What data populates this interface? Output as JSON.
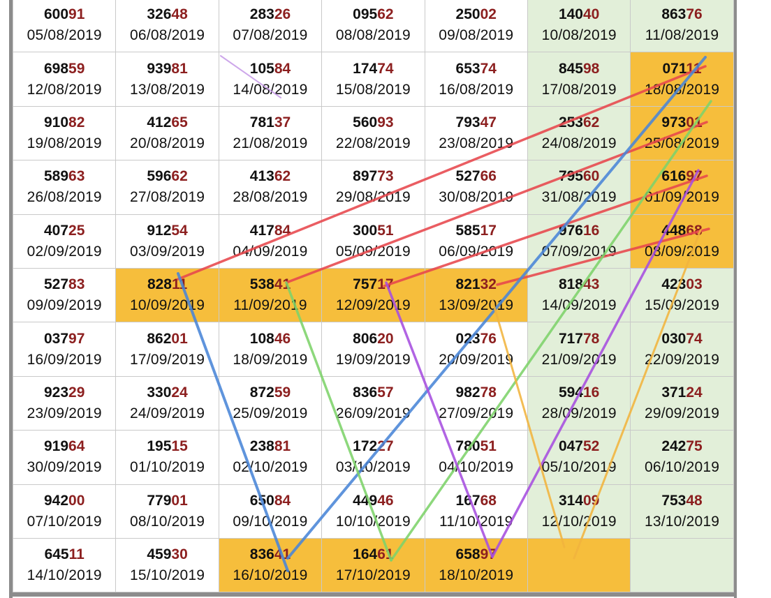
{
  "rows": [
    [
      {
        "head": "600",
        "tail": "91",
        "date": "05/08/2019"
      },
      {
        "head": "326",
        "tail": "48",
        "date": "06/08/2019"
      },
      {
        "head": "283",
        "tail": "26",
        "date": "07/08/2019"
      },
      {
        "head": "095",
        "tail": "62",
        "date": "08/08/2019"
      },
      {
        "head": "250",
        "tail": "02",
        "date": "09/08/2019"
      },
      {
        "head": "140",
        "tail": "40",
        "date": "10/08/2019"
      },
      {
        "head": "863",
        "tail": "76",
        "date": "11/08/2019"
      }
    ],
    [
      {
        "head": "698",
        "tail": "59",
        "date": "12/08/2019"
      },
      {
        "head": "939",
        "tail": "81",
        "date": "13/08/2019"
      },
      {
        "head": "105",
        "tail": "84",
        "date": "14/08/2019"
      },
      {
        "head": "174",
        "tail": "74",
        "date": "15/08/2019"
      },
      {
        "head": "653",
        "tail": "74",
        "date": "16/08/2019"
      },
      {
        "head": "845",
        "tail": "98",
        "date": "17/08/2019"
      },
      {
        "head": "071",
        "tail": "11",
        "date": "18/08/2019",
        "hl": "orange"
      }
    ],
    [
      {
        "head": "910",
        "tail": "82",
        "date": "19/08/2019"
      },
      {
        "head": "412",
        "tail": "65",
        "date": "20/08/2019"
      },
      {
        "head": "781",
        "tail": "37",
        "date": "21/08/2019"
      },
      {
        "head": "560",
        "tail": "93",
        "date": "22/08/2019"
      },
      {
        "head": "793",
        "tail": "47",
        "date": "23/08/2019"
      },
      {
        "head": "253",
        "tail": "62",
        "date": "24/08/2019"
      },
      {
        "head": "973",
        "tail": "01",
        "date": "25/08/2019",
        "hl": "orange"
      }
    ],
    [
      {
        "head": "589",
        "tail": "63",
        "date": "26/08/2019"
      },
      {
        "head": "596",
        "tail": "62",
        "date": "27/08/2019"
      },
      {
        "head": "413",
        "tail": "62",
        "date": "28/08/2019"
      },
      {
        "head": "897",
        "tail": "73",
        "date": "29/08/2019"
      },
      {
        "head": "527",
        "tail": "66",
        "date": "30/08/2019"
      },
      {
        "head": "795",
        "tail": "60",
        "date": "31/08/2019"
      },
      {
        "head": "616",
        "tail": "97",
        "date": "01/09/2019",
        "hl": "orange"
      }
    ],
    [
      {
        "head": "407",
        "tail": "25",
        "date": "02/09/2019"
      },
      {
        "head": "912",
        "tail": "54",
        "date": "03/09/2019"
      },
      {
        "head": "417",
        "tail": "84",
        "date": "04/09/2019"
      },
      {
        "head": "300",
        "tail": "51",
        "date": "05/09/2019"
      },
      {
        "head": "585",
        "tail": "17",
        "date": "06/09/2019"
      },
      {
        "head": "976",
        "tail": "16",
        "date": "07/09/2019"
      },
      {
        "head": "448",
        "tail": "68",
        "date": "08/09/2019",
        "hl": "orange"
      }
    ],
    [
      {
        "head": "527",
        "tail": "83",
        "date": "09/09/2019"
      },
      {
        "head": "828",
        "tail": "11",
        "date": "10/09/2019",
        "hl": "orange"
      },
      {
        "head": "538",
        "tail": "41",
        "date": "11/09/2019",
        "hl": "orange"
      },
      {
        "head": "757",
        "tail": "17",
        "date": "12/09/2019",
        "hl": "orange"
      },
      {
        "head": "821",
        "tail": "32",
        "date": "13/09/2019",
        "hl": "orange"
      },
      {
        "head": "818",
        "tail": "43",
        "date": "14/09/2019"
      },
      {
        "head": "423",
        "tail": "03",
        "date": "15/09/2019"
      }
    ],
    [
      {
        "head": "037",
        "tail": "97",
        "date": "16/09/2019"
      },
      {
        "head": "862",
        "tail": "01",
        "date": "17/09/2019"
      },
      {
        "head": "108",
        "tail": "46",
        "date": "18/09/2019"
      },
      {
        "head": "806",
        "tail": "20",
        "date": "19/09/2019"
      },
      {
        "head": "023",
        "tail": "76",
        "date": "20/09/2019"
      },
      {
        "head": "717",
        "tail": "78",
        "date": "21/09/2019"
      },
      {
        "head": "030",
        "tail": "74",
        "date": "22/09/2019"
      }
    ],
    [
      {
        "head": "923",
        "tail": "29",
        "date": "23/09/2019"
      },
      {
        "head": "330",
        "tail": "24",
        "date": "24/09/2019"
      },
      {
        "head": "872",
        "tail": "59",
        "date": "25/09/2019"
      },
      {
        "head": "836",
        "tail": "57",
        "date": "26/09/2019"
      },
      {
        "head": "982",
        "tail": "78",
        "date": "27/09/2019"
      },
      {
        "head": "594",
        "tail": "16",
        "date": "28/09/2019"
      },
      {
        "head": "371",
        "tail": "24",
        "date": "29/09/2019"
      }
    ],
    [
      {
        "head": "919",
        "tail": "64",
        "date": "30/09/2019"
      },
      {
        "head": "195",
        "tail": "15",
        "date": "01/10/2019"
      },
      {
        "head": "238",
        "tail": "81",
        "date": "02/10/2019"
      },
      {
        "head": "172",
        "tail": "27",
        "date": "03/10/2019"
      },
      {
        "head": "780",
        "tail": "51",
        "date": "04/10/2019"
      },
      {
        "head": "047",
        "tail": "52",
        "date": "05/10/2019"
      },
      {
        "head": "242",
        "tail": "75",
        "date": "06/10/2019"
      }
    ],
    [
      {
        "head": "942",
        "tail": "00",
        "date": "07/10/2019"
      },
      {
        "head": "779",
        "tail": "01",
        "date": "08/10/2019"
      },
      {
        "head": "650",
        "tail": "84",
        "date": "09/10/2019"
      },
      {
        "head": "449",
        "tail": "46",
        "date": "10/10/2019"
      },
      {
        "head": "167",
        "tail": "68",
        "date": "11/10/2019"
      },
      {
        "head": "314",
        "tail": "09",
        "date": "12/10/2019"
      },
      {
        "head": "753",
        "tail": "48",
        "date": "13/10/2019"
      }
    ],
    [
      {
        "head": "645",
        "tail": "11",
        "date": "14/10/2019"
      },
      {
        "head": "459",
        "tail": "30",
        "date": "15/10/2019"
      },
      {
        "head": "836",
        "tail": "41",
        "date": "16/10/2019",
        "hl": "orange"
      },
      {
        "head": "164",
        "tail": "61",
        "date": "17/10/2019",
        "hl": "orange"
      },
      {
        "head": "658",
        "tail": "97",
        "date": "18/10/2019",
        "hl": "orange"
      },
      {
        "head": "",
        "tail": "",
        "date": "",
        "hl": "orange"
      },
      {
        "head": "",
        "tail": "",
        "date": "",
        "hl": "green"
      }
    ]
  ],
  "green_columns": [
    5,
    6
  ],
  "colors": {
    "orange_highlight": "#f6be3c",
    "green_highlight": "#e2efd9",
    "tail_digits": "#8c1f1f",
    "stroke_red": "#e8474d",
    "stroke_blue": "#4a86d8",
    "stroke_green": "#7ed36b",
    "stroke_purple": "#a74fe0",
    "stroke_orange": "#f2b43e",
    "stroke_lilac": "#c79be8"
  }
}
